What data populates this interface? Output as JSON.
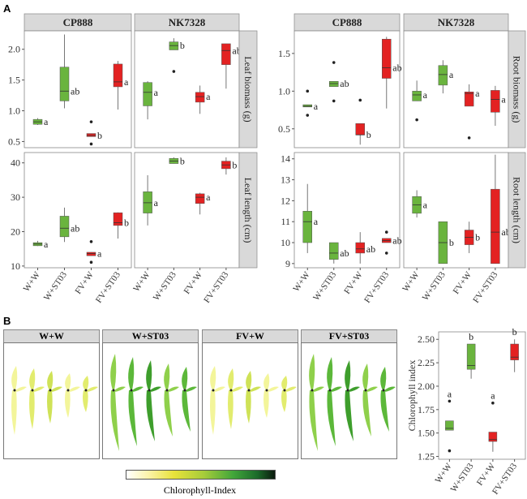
{
  "panel_labels": {
    "a": "A",
    "b": "B"
  },
  "colors": {
    "control": "#6ab43e",
    "fv": "#e32222",
    "strip": "#d9d9d9",
    "point": "#222222"
  },
  "chart_data": [
    {
      "id": "leaf",
      "type": "boxplot",
      "facet_columns": [
        "CP888",
        "NK7328"
      ],
      "categories": [
        "W+W",
        "W+ST03",
        "FV+W",
        "FV+ST03"
      ],
      "rows": [
        {
          "label": "Leaf biomass (g)",
          "ylim": [
            0.4,
            2.3
          ],
          "ticks": [
            0.5,
            1.0,
            1.5,
            2.0
          ],
          "tick_labels": [
            "0.5",
            "1.0",
            "1.5",
            "2.0"
          ],
          "panels": [
            [
              {
                "min": 0.77,
                "q1": 0.78,
                "med": 0.82,
                "q3": 0.86,
                "max": 0.88,
                "out": [],
                "letter": "a"
              },
              {
                "min": 1.04,
                "q1": 1.16,
                "med": 1.32,
                "q3": 1.71,
                "max": 2.24,
                "out": [],
                "letter": "ab"
              },
              {
                "min": 0.58,
                "q1": 0.58,
                "med": 0.6,
                "q3": 0.63,
                "max": 0.63,
                "out": [
                  0.82,
                  0.46
                ],
                "letter": "b"
              },
              {
                "min": 1.02,
                "q1": 1.39,
                "med": 1.47,
                "q3": 1.76,
                "max": 1.81,
                "out": [],
                "letter": "a"
              }
            ],
            [
              {
                "min": 0.86,
                "q1": 1.08,
                "med": 1.3,
                "q3": 1.46,
                "max": 1.48,
                "out": [],
                "letter": "a"
              },
              {
                "min": 1.99,
                "q1": 1.99,
                "med": 2.06,
                "q3": 2.12,
                "max": 2.18,
                "out": [
                  1.64
                ],
                "letter": "b"
              },
              {
                "min": 0.95,
                "q1": 1.14,
                "med": 1.23,
                "q3": 1.3,
                "max": 1.41,
                "out": [],
                "letter": "a"
              },
              {
                "min": 1.36,
                "q1": 1.75,
                "med": 1.98,
                "q3": 2.09,
                "max": 2.09,
                "out": [],
                "letter": "ab"
              }
            ]
          ]
        },
        {
          "label": "Leaf length (cm)",
          "ylim": [
            9.5,
            43
          ],
          "ticks": [
            10,
            20,
            30,
            40
          ],
          "tick_labels": [
            "10",
            "20",
            "30",
            "40"
          ],
          "panels": [
            [
              {
                "min": 15.8,
                "q1": 15.9,
                "med": 16.4,
                "q3": 16.8,
                "max": 17.3,
                "out": [],
                "letter": "a"
              },
              {
                "min": 17.0,
                "q1": 18.5,
                "med": 21.0,
                "q3": 24.5,
                "max": 27.0,
                "out": [],
                "letter": "ab"
              },
              {
                "min": 13.0,
                "q1": 13.0,
                "med": 13.6,
                "q3": 14.0,
                "max": 14.0,
                "out": [
                  17.1,
                  11.1
                ],
                "letter": "a"
              },
              {
                "min": 18.0,
                "q1": 21.8,
                "med": 22.6,
                "q3": 25.5,
                "max": 25.6,
                "out": [],
                "letter": "b"
              }
            ],
            [
              {
                "min": 21.8,
                "q1": 25.4,
                "med": 28.4,
                "q3": 31.6,
                "max": 36.4,
                "out": [],
                "letter": "a"
              },
              {
                "min": 39.8,
                "q1": 39.8,
                "med": 40.5,
                "q3": 41.3,
                "max": 41.6,
                "out": [],
                "letter": "b"
              },
              {
                "min": 25.0,
                "q1": 28.2,
                "med": 30.0,
                "q3": 31.0,
                "max": 31.3,
                "out": [],
                "letter": "a"
              },
              {
                "min": 36.6,
                "q1": 38.3,
                "med": 39.4,
                "q3": 40.5,
                "max": 41.6,
                "out": [],
                "letter": "b"
              }
            ]
          ]
        }
      ]
    },
    {
      "id": "root",
      "type": "boxplot",
      "facet_columns": [
        "CP888",
        "NK7328"
      ],
      "categories": [
        "W+W",
        "W+ST03",
        "FV+W",
        "FV+ST03"
      ],
      "rows": [
        {
          "label": "Root biomass (g)",
          "ylim": [
            0.25,
            1.8
          ],
          "ticks": [
            0.5,
            1.0,
            1.5
          ],
          "tick_labels": [
            "0.5",
            "1.0",
            "1.5"
          ],
          "panels": [
            [
              {
                "min": 0.79,
                "q1": 0.79,
                "med": 0.8,
                "q3": 0.82,
                "max": 0.82,
                "out": [
                  1.0,
                  0.68
                ],
                "letter": "a"
              },
              {
                "min": 1.06,
                "q1": 1.06,
                "med": 1.1,
                "q3": 1.13,
                "max": 1.13,
                "out": [
                  1.38,
                  0.87
                ],
                "letter": "ab"
              },
              {
                "min": 0.29,
                "q1": 0.42,
                "med": 0.42,
                "q3": 0.57,
                "max": 0.57,
                "out": [
                  0.88
                ],
                "letter": "b"
              },
              {
                "min": 0.77,
                "q1": 1.17,
                "med": 1.31,
                "q3": 1.69,
                "max": 1.72,
                "out": [],
                "letter": "ab"
              }
            ],
            [
              {
                "min": 0.87,
                "q1": 0.87,
                "med": 0.95,
                "q3": 1.0,
                "max": 1.14,
                "out": [
                  0.62
                ],
                "letter": "a"
              },
              {
                "min": 0.97,
                "q1": 1.08,
                "med": 1.22,
                "q3": 1.34,
                "max": 1.41,
                "out": [],
                "letter": "a"
              },
              {
                "min": 0.8,
                "q1": 0.8,
                "med": 0.97,
                "q3": 0.99,
                "max": 1.09,
                "out": [
                  0.38
                ],
                "letter": "a"
              },
              {
                "min": 0.54,
                "q1": 0.72,
                "med": 0.89,
                "q3": 1.01,
                "max": 1.07,
                "out": [],
                "letter": "a"
              }
            ]
          ]
        },
        {
          "label": "Root length (cm)",
          "ylim": [
            8.8,
            14.3
          ],
          "ticks": [
            9,
            10,
            11,
            12,
            13,
            14
          ],
          "tick_labels": [
            "9",
            "10",
            "11",
            "12",
            "13",
            "14"
          ],
          "panels": [
            [
              {
                "min": 9.5,
                "q1": 10.0,
                "med": 11.0,
                "q3": 11.5,
                "max": 12.8,
                "out": [],
                "letter": "a"
              },
              {
                "min": 9.0,
                "q1": 9.2,
                "med": 9.5,
                "q3": 10.0,
                "max": 10.0,
                "out": [],
                "letter": "ab"
              },
              {
                "min": 9.0,
                "q1": 9.5,
                "med": 9.7,
                "q3": 10.0,
                "max": 10.5,
                "out": [],
                "letter": "ab"
              },
              {
                "min": 10.0,
                "q1": 10.0,
                "med": 10.1,
                "q3": 10.2,
                "max": 10.2,
                "out": [
                  10.5,
                  9.5
                ],
                "letter": "ab"
              }
            ],
            [
              {
                "min": 11.2,
                "q1": 11.4,
                "med": 11.8,
                "q3": 12.2,
                "max": 12.5,
                "out": [],
                "letter": "a"
              },
              {
                "min": 9.0,
                "q1": 9.0,
                "med": 10.0,
                "q3": 11.0,
                "max": 11.0,
                "out": [],
                "letter": "b"
              },
              {
                "min": 9.5,
                "q1": 9.9,
                "med": 10.25,
                "q3": 10.6,
                "max": 11.0,
                "out": [],
                "letter": "b"
              },
              {
                "min": 9.0,
                "q1": 9.0,
                "med": 10.5,
                "q3": 12.55,
                "max": 14.2,
                "out": [],
                "letter": "ab"
              }
            ]
          ]
        }
      ]
    },
    {
      "id": "chlorophyll",
      "type": "boxplot",
      "categories": [
        "W+W",
        "W+ST03",
        "FV+W",
        "FV+ST03"
      ],
      "ylabel": "Chlorophyll index",
      "ylim": [
        1.22,
        2.58
      ],
      "ticks": [
        1.25,
        1.5,
        1.75,
        2.0,
        2.25,
        2.5
      ],
      "tick_labels": [
        "1.25",
        "1.50",
        "1.75",
        "2.00",
        "2.25",
        "2.50"
      ],
      "boxes": [
        {
          "min": 1.53,
          "q1": 1.53,
          "med": 1.55,
          "q3": 1.63,
          "max": 1.63,
          "out": [
            1.84,
            1.31
          ],
          "letter": "a"
        },
        {
          "min": 2.08,
          "q1": 2.18,
          "med": 2.22,
          "q3": 2.45,
          "max": 2.45,
          "out": [],
          "letter": "b"
        },
        {
          "min": 1.3,
          "q1": 1.41,
          "med": 1.43,
          "q3": 1.51,
          "max": 1.51,
          "out": [
            1.82
          ],
          "letter": "a"
        },
        {
          "min": 2.15,
          "q1": 2.28,
          "med": 2.31,
          "q3": 2.45,
          "max": 2.5,
          "out": [],
          "letter": "b"
        }
      ]
    }
  ],
  "photos": {
    "panels": [
      {
        "label": "W+W",
        "tone": "pale"
      },
      {
        "label": "W+ST03",
        "tone": "green"
      },
      {
        "label": "FV+W",
        "tone": "pale"
      },
      {
        "label": "FV+ST03",
        "tone": "green"
      }
    ],
    "colorbar_label": "Chlorophyll-Index"
  }
}
